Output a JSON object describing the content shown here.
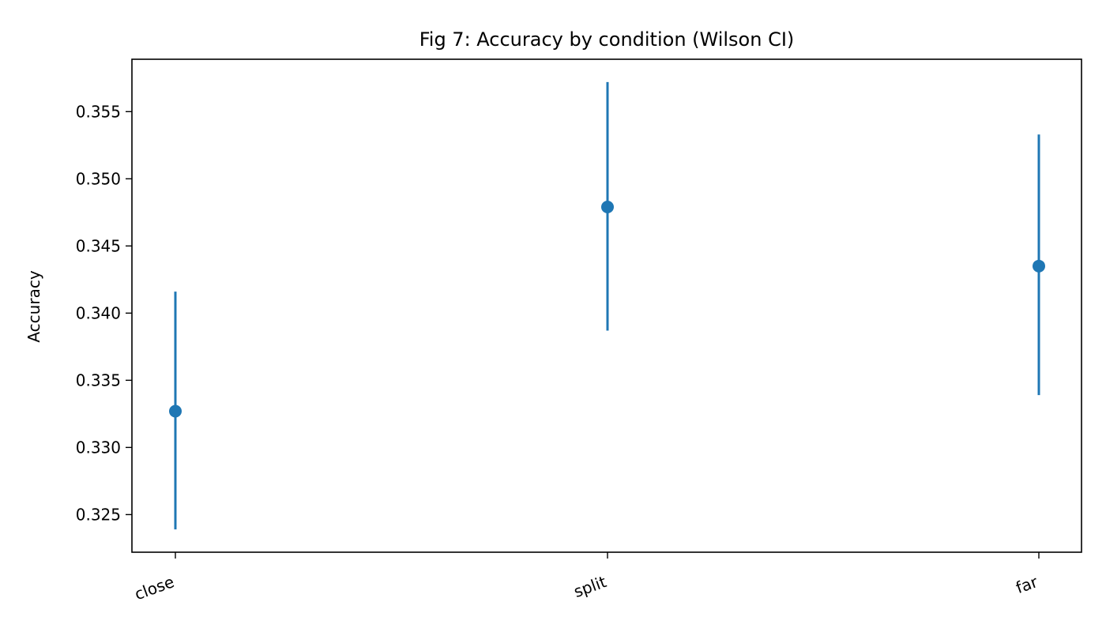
{
  "chart_data": {
    "type": "scatter",
    "title": "Fig 7: Accuracy by condition (Wilson CI)",
    "xlabel": "",
    "ylabel": "Accuracy",
    "categories": [
      "close",
      "split",
      "far"
    ],
    "series": [
      {
        "values": [
          0.3327,
          0.3479,
          0.3435
        ],
        "ci_low": [
          0.3239,
          0.3387,
          0.3339
        ],
        "ci_high": [
          0.3416,
          0.3572,
          0.3533
        ]
      }
    ],
    "ylim": [
      0.3222,
      0.3589
    ],
    "yticks": [
      "0.325",
      "0.330",
      "0.335",
      "0.340",
      "0.345",
      "0.350",
      "0.355"
    ],
    "grid": false,
    "legend": "none",
    "colors": {
      "series": "#1f77b4",
      "axis": "#000000",
      "background": "#ffffff"
    }
  }
}
